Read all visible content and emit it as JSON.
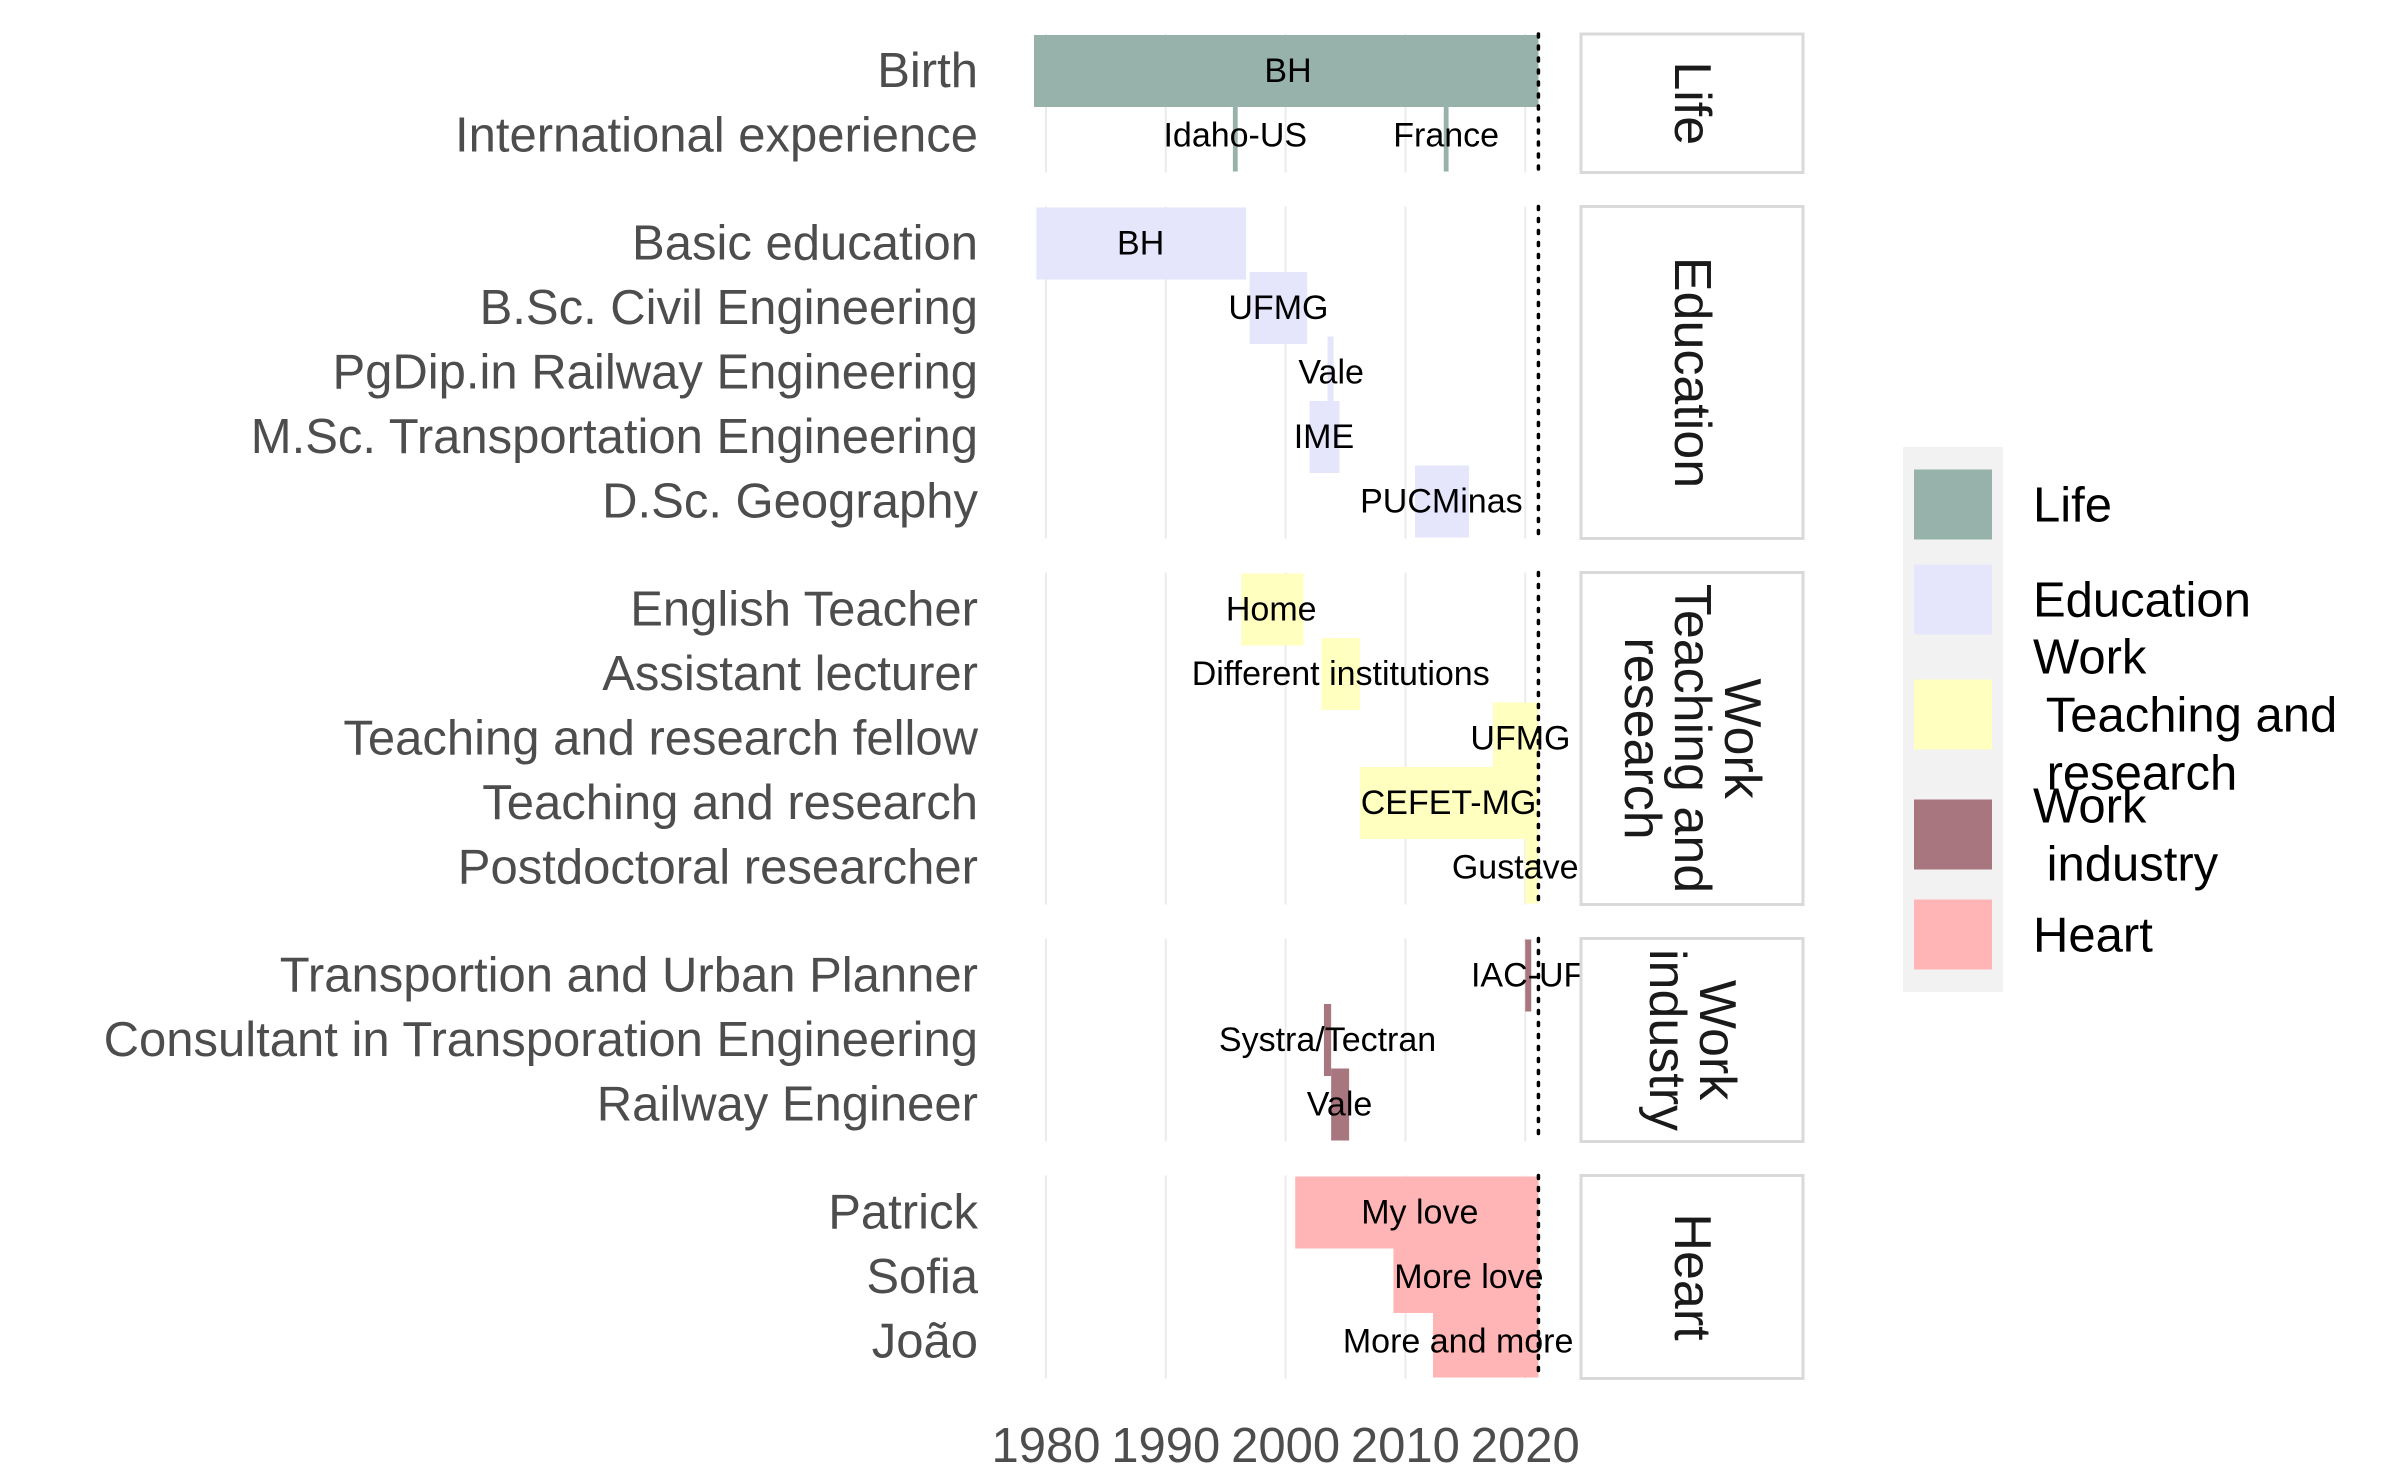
{
  "chart_data": {
    "type": "gantt-timeline",
    "title": "",
    "xlabel": "",
    "ylabel": "",
    "xlim": [
      1979,
      2022.4
    ],
    "x_ticks": [
      1980,
      1990,
      2000,
      2010,
      2020
    ],
    "reference_line": {
      "x": 2021.1,
      "style": "dotted"
    },
    "panels": [
      {
        "name": "Life",
        "strip": [
          "Life"
        ],
        "rows": [
          {
            "label": "Birth",
            "items": [
              {
                "start": 1979,
                "end": 2021.1,
                "text": "BH",
                "text_x": 2000.2
              }
            ]
          },
          {
            "label": "International experience",
            "items": [
              {
                "start": 1995.6,
                "end": 1996.0,
                "text": "Idaho-US",
                "text_x": 1995.8
              },
              {
                "start": 2013.2,
                "end": 2013.6,
                "text": "France",
                "text_x": 2013.4
              }
            ]
          }
        ]
      },
      {
        "name": "Education",
        "strip": [
          "Education"
        ],
        "rows": [
          {
            "label": "Basic education",
            "items": [
              {
                "start": 1979.2,
                "end": 1996.7,
                "text": "BH",
                "text_x": 1987.9
              }
            ]
          },
          {
            "label": "B.Sc. Civil Engineering",
            "items": [
              {
                "start": 1997.0,
                "end": 2001.8,
                "text": "UFMG",
                "text_x": 1999.4
              }
            ]
          },
          {
            "label": "PgDip.in Railway Engineering",
            "items": [
              {
                "start": 2003.5,
                "end": 2004.0,
                "text": "Vale",
                "text_x": 2003.8
              }
            ]
          },
          {
            "label": "M.Sc. Transportation Engineering",
            "items": [
              {
                "start": 2002.0,
                "end": 2004.5,
                "text": "IME",
                "text_x": 2003.2
              }
            ]
          },
          {
            "label": "D.Sc. Geography",
            "items": [
              {
                "start": 2010.8,
                "end": 2015.3,
                "text": "PUCMinas",
                "text_x": 2013.0
              }
            ]
          }
        ]
      },
      {
        "name": "Work Teaching and research",
        "strip": [
          "Work",
          "Teaching and",
          "research"
        ],
        "rows": [
          {
            "label": "English Teacher",
            "items": [
              {
                "start": 1996.3,
                "end": 2001.5,
                "text": "Home",
                "text_x": 1998.8
              }
            ]
          },
          {
            "label": "Assistant lecturer",
            "items": [
              {
                "start": 2003.0,
                "end": 2006.2,
                "text": "Different institutions",
                "text_x": 2004.6
              }
            ]
          },
          {
            "label": "Teaching and research fellow",
            "items": [
              {
                "start": 2017.3,
                "end": 2021.1,
                "text": "UFMG",
                "text_x": 2019.6
              }
            ]
          },
          {
            "label": "Teaching and research",
            "items": [
              {
                "start": 2006.2,
                "end": 2021.1,
                "text": "CEFET-MG",
                "text_x": 2013.6
              }
            ]
          },
          {
            "label": "Postdoctoral researcher",
            "items": [
              {
                "start": 2020.0,
                "end": 2021.1,
                "text": "Gustave E",
                "text_x": 2020.5
              }
            ]
          }
        ]
      },
      {
        "name": "Work industry",
        "strip": [
          "Work",
          "industry"
        ],
        "rows": [
          {
            "label": "Transportion and Urban Planner",
            "items": [
              {
                "start": 2020.0,
                "end": 2020.5,
                "text": "IAC-UF",
                "text_x": 2020.2
              }
            ]
          },
          {
            "label": "Consultant in Transporation Engineering",
            "items": [
              {
                "start": 2003.2,
                "end": 2003.8,
                "text": "Systra/Tectran",
                "text_x": 2003.5
              }
            ]
          },
          {
            "label": "Railway Engineer",
            "items": [
              {
                "start": 2003.8,
                "end": 2005.3,
                "text": "Vale",
                "text_x": 2004.5
              }
            ]
          }
        ]
      },
      {
        "name": "Heart",
        "strip": [
          "Heart"
        ],
        "rows": [
          {
            "label": "Patrick",
            "items": [
              {
                "start": 2000.8,
                "end": 2021.1,
                "text": "My love",
                "text_x": 2011.2
              }
            ]
          },
          {
            "label": "Sofia",
            "items": [
              {
                "start": 2009.0,
                "end": 2021.1,
                "text": "More love",
                "text_x": 2015.3
              }
            ]
          },
          {
            "label": "João",
            "items": [
              {
                "start": 2012.3,
                "end": 2021.1,
                "text": "More and more",
                "text_x": 2014.4
              }
            ]
          }
        ]
      }
    ],
    "legend": {
      "placement": "right",
      "entries": [
        {
          "key": "Life",
          "lines": [
            "Life"
          ],
          "color": "#97b2aa"
        },
        {
          "key": "Education",
          "lines": [
            "Education"
          ],
          "color": "#e5e5fc"
        },
        {
          "key": "Work Teaching and research",
          "lines": [
            "Work",
            " Teaching and",
            " research"
          ],
          "color": "#ffffbf"
        },
        {
          "key": "Work industry",
          "lines": [
            "Work",
            " industry"
          ],
          "color": "#a8767e"
        },
        {
          "key": "Heart",
          "lines": [
            "Heart"
          ],
          "color": "#ffb5b5"
        }
      ]
    },
    "grid": true
  }
}
